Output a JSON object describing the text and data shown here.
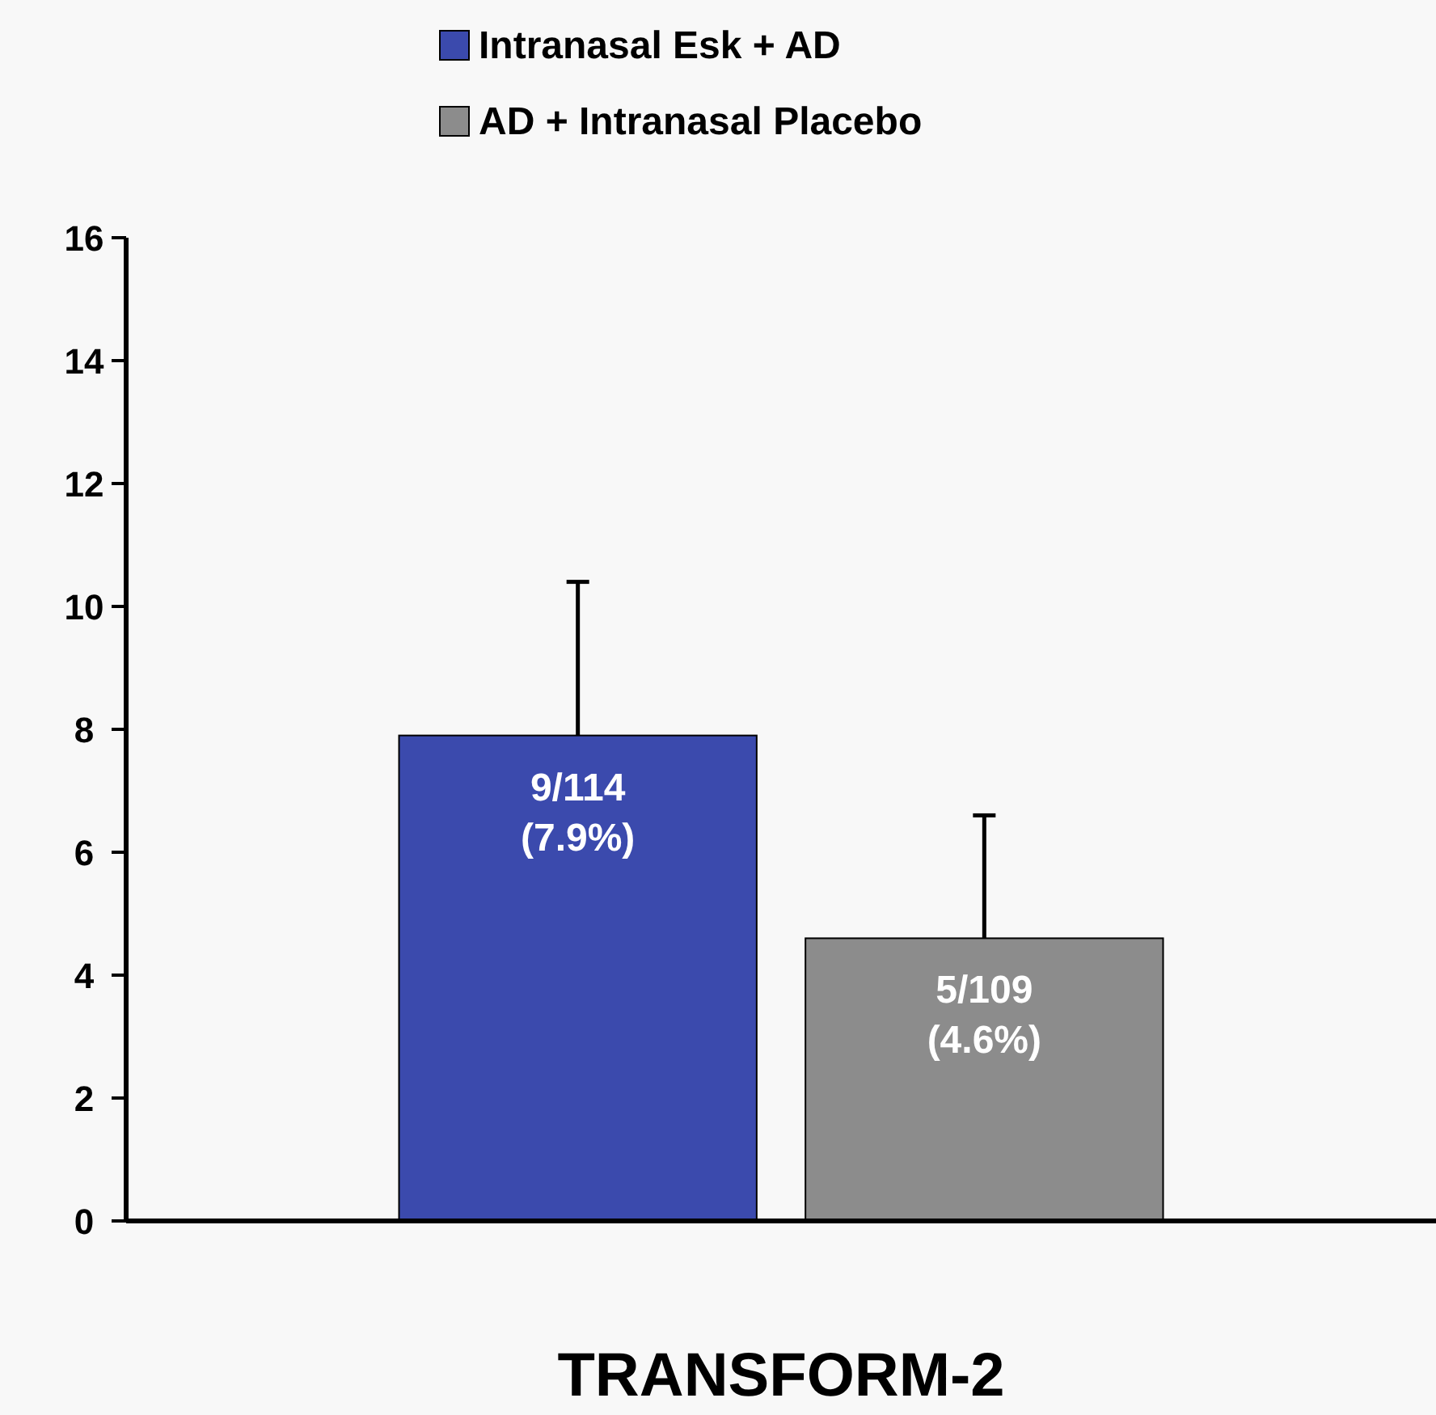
{
  "chart_data": {
    "type": "bar",
    "categories": [
      "TRANSFORM-2"
    ],
    "series": [
      {
        "name": "Intranasal Esk + AD",
        "color": "#3b4aad",
        "values": [
          7.9
        ],
        "errors": [
          [
            7.9,
            10.4
          ]
        ],
        "value_labels": [
          "9/114\n(7.9%)"
        ]
      },
      {
        "name": "AD + Intranasal Placebo",
        "color": "#8c8c8c",
        "values": [
          4.6
        ],
        "errors": [
          [
            4.6,
            6.6
          ]
        ],
        "value_labels": [
          "5/109\n(4.6%)"
        ]
      }
    ],
    "ylim": [
      0,
      16
    ],
    "yticks": [
      0,
      2,
      4,
      6,
      8,
      10,
      12,
      14,
      16
    ],
    "grid": false,
    "legend": "top"
  }
}
